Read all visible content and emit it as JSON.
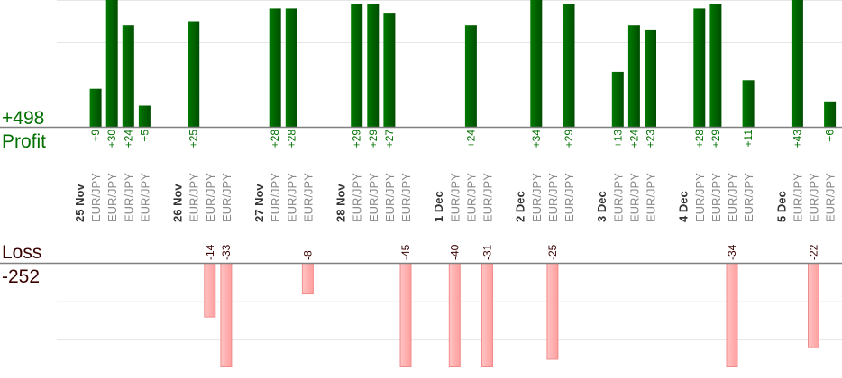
{
  "summary": {
    "profit_total": "+498",
    "profit_label": "Profit",
    "loss_label": "Loss",
    "loss_total": "-252"
  },
  "colors": {
    "profit_bar": "#006400",
    "profit_text": "#007000",
    "loss_bar": "#ffb0b0",
    "loss_text": "#3a0000",
    "pair_text": "#888888",
    "date_text": "#333333"
  },
  "chart_data": {
    "type": "bar",
    "profit_axis": {
      "ylim": [
        0,
        30
      ],
      "grid_step": 10
    },
    "loss_axis": {
      "ylim": [
        -27,
        0
      ],
      "grid_step": 10
    },
    "groups": [
      {
        "date": "25 Nov",
        "trades": [
          {
            "pair": "EUR/JPY",
            "value": 9
          },
          {
            "pair": "EUR/JPY",
            "value": 30
          },
          {
            "pair": "EUR/JPY",
            "value": 24
          },
          {
            "pair": "EUR/JPY",
            "value": 5
          }
        ]
      },
      {
        "date": "26 Nov",
        "trades": [
          {
            "pair": "EUR/JPY",
            "value": 25
          },
          {
            "pair": "EUR/JPY",
            "value": -14
          },
          {
            "pair": "EUR/JPY",
            "value": -33
          }
        ]
      },
      {
        "date": "27 Nov",
        "trades": [
          {
            "pair": "EUR/JPY",
            "value": 28
          },
          {
            "pair": "EUR/JPY",
            "value": 28
          },
          {
            "pair": "EUR/JPY",
            "value": -8
          }
        ]
      },
      {
        "date": "28 Nov",
        "trades": [
          {
            "pair": "EUR/JPY",
            "value": 29
          },
          {
            "pair": "EUR/JPY",
            "value": 29
          },
          {
            "pair": "EUR/JPY",
            "value": 27
          },
          {
            "pair": "EUR/JPY",
            "value": -45
          }
        ]
      },
      {
        "date": "1 Dec",
        "trades": [
          {
            "pair": "EUR/JPY",
            "value": -40
          },
          {
            "pair": "EUR/JPY",
            "value": 24
          },
          {
            "pair": "EUR/JPY",
            "value": -31
          }
        ]
      },
      {
        "date": "2 Dec",
        "trades": [
          {
            "pair": "EUR/JPY",
            "value": 34
          },
          {
            "pair": "EUR/JPY",
            "value": -25
          },
          {
            "pair": "EUR/JPY",
            "value": 29
          }
        ]
      },
      {
        "date": "3 Dec",
        "trades": [
          {
            "pair": "EUR/JPY",
            "value": 13
          },
          {
            "pair": "EUR/JPY",
            "value": 24
          },
          {
            "pair": "EUR/JPY",
            "value": 23
          }
        ]
      },
      {
        "date": "4 Dec",
        "trades": [
          {
            "pair": "EUR/JPY",
            "value": 28
          },
          {
            "pair": "EUR/JPY",
            "value": 29
          },
          {
            "pair": "EUR/JPY",
            "value": -34
          },
          {
            "pair": "EUR/JPY",
            "value": 11
          }
        ]
      },
      {
        "date": "5 Dec",
        "trades": [
          {
            "pair": "EUR/JPY",
            "value": 43
          },
          {
            "pair": "EUR/JPY",
            "value": -22
          },
          {
            "pair": "EUR/JPY",
            "value": 6
          }
        ]
      }
    ]
  }
}
